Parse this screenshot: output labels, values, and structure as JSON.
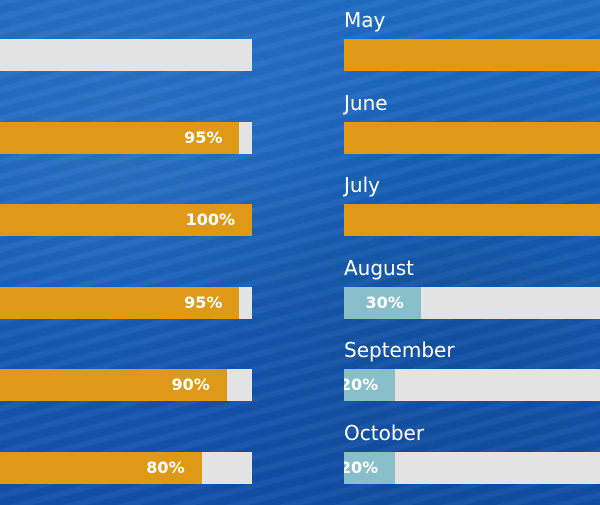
{
  "colors": {
    "background": "#1763bd",
    "bar_track": "#e3e3e3",
    "bar_high": "#de9a17",
    "bar_low": "#88bfcb",
    "text": "#ffffff"
  },
  "chart_data": {
    "type": "bar",
    "orientation": "horizontal",
    "unit": "%",
    "range": [
      0,
      100
    ],
    "left_column": {
      "categories": [
        "",
        "",
        "",
        "",
        "",
        ""
      ],
      "values": [
        0,
        95,
        100,
        95,
        90,
        80
      ],
      "value_labels": [
        "",
        "95%",
        "100%",
        "95%",
        "90%",
        "80%"
      ]
    },
    "right_column": {
      "categories": [
        "May",
        "June",
        "July",
        "August",
        "September",
        "October"
      ],
      "values": [
        100,
        100,
        100,
        30,
        20,
        20
      ],
      "value_labels": [
        "",
        "",
        "",
        "30%",
        "20%",
        "20%"
      ]
    }
  }
}
